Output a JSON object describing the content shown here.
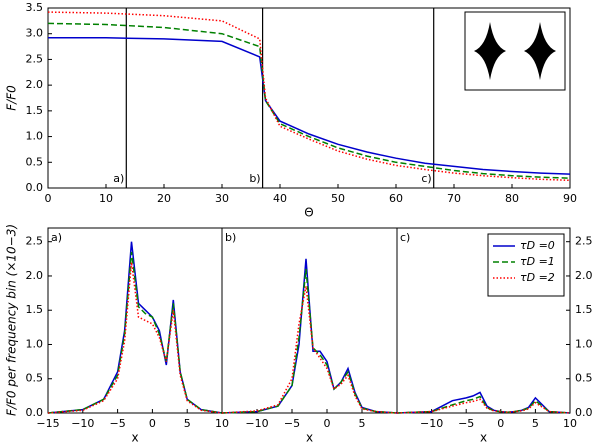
{
  "chart_data": [
    {
      "type": "line",
      "xlabel": "Θ",
      "ylabel": "F/F0",
      "xlim": [
        0,
        90
      ],
      "ylim": [
        0,
        3.5
      ],
      "xticks": [
        0,
        10,
        20,
        30,
        40,
        50,
        60,
        70,
        80,
        90
      ],
      "yticks": [
        {
          "value": 0,
          "label": "0.0"
        },
        0.5,
        {
          "value": 1,
          "label": "1.0"
        },
        1.5,
        {
          "value": 2,
          "label": "2.0"
        },
        2.5,
        {
          "value": 3,
          "label": "3.0"
        },
        3.5
      ],
      "markers": [
        {
          "x": 13.5,
          "label": "a)"
        },
        {
          "x": 37,
          "label": "b)"
        },
        {
          "x": 66.5,
          "label": "c)"
        }
      ],
      "x": [
        0,
        10,
        20,
        30,
        36.5,
        37.5,
        40,
        45,
        50,
        55,
        60,
        65,
        70,
        75,
        80,
        85,
        90
      ],
      "series": [
        {
          "color": "#0000cc",
          "style": "solid",
          "values": [
            2.92,
            2.92,
            2.9,
            2.85,
            2.55,
            1.7,
            1.3,
            1.05,
            0.85,
            0.7,
            0.58,
            0.48,
            0.42,
            0.36,
            0.32,
            0.29,
            0.27
          ]
        },
        {
          "color": "#008000",
          "style": "dashed",
          "values": [
            3.2,
            3.18,
            3.12,
            3.0,
            2.75,
            1.7,
            1.25,
            1.0,
            0.78,
            0.62,
            0.5,
            0.42,
            0.34,
            0.28,
            0.24,
            0.21,
            0.19
          ]
        },
        {
          "color": "#ff0000",
          "style": "dotted",
          "values": [
            3.42,
            3.4,
            3.35,
            3.25,
            2.9,
            1.75,
            1.2,
            0.95,
            0.72,
            0.56,
            0.44,
            0.36,
            0.29,
            0.24,
            0.2,
            0.17,
            0.15
          ]
        }
      ]
    },
    {
      "type": "line",
      "panel_label": "a)",
      "xlabel": "x",
      "ylabel": "F/F0 per frequency bin (×10−3)",
      "ytick_side": "left",
      "xlim": [
        -15,
        10
      ],
      "ylim": [
        0,
        2.7
      ],
      "xticks": [
        {
          "value": -15,
          "label": "−15"
        },
        {
          "value": -10,
          "label": "−10"
        },
        {
          "value": -5,
          "label": "−5"
        },
        0,
        5,
        10
      ],
      "yticks": [
        {
          "value": 0,
          "label": "0.0"
        },
        0.5,
        {
          "value": 1,
          "label": "1.0"
        },
        1.5,
        {
          "value": 2,
          "label": "2.0"
        },
        2.5
      ],
      "x": [
        -15,
        -10,
        -7,
        -5,
        -4,
        -3,
        -2,
        -1,
        0,
        1,
        2,
        3,
        4,
        5,
        7,
        10
      ],
      "series": [
        {
          "color": "#0000cc",
          "style": "solid",
          "values": [
            0,
            0.05,
            0.2,
            0.6,
            1.2,
            2.5,
            1.6,
            1.5,
            1.4,
            1.2,
            0.7,
            1.65,
            0.6,
            0.2,
            0.05,
            0
          ]
        },
        {
          "color": "#008000",
          "style": "dashed",
          "values": [
            0,
            0.05,
            0.2,
            0.55,
            1.15,
            2.35,
            1.55,
            1.45,
            1.4,
            1.15,
            0.75,
            1.6,
            0.6,
            0.2,
            0.05,
            0
          ]
        },
        {
          "color": "#ff0000",
          "style": "dotted",
          "values": [
            0,
            0.04,
            0.18,
            0.5,
            1.05,
            2.2,
            1.4,
            1.35,
            1.3,
            1.1,
            0.75,
            1.5,
            0.55,
            0.18,
            0.04,
            0
          ]
        }
      ]
    },
    {
      "type": "line",
      "panel_label": "b)",
      "xlabel": "x",
      "xlim": [
        -15,
        10
      ],
      "ylim": [
        0,
        2.7
      ],
      "xticks": [
        {
          "value": -10,
          "label": "−10"
        },
        {
          "value": -5,
          "label": "−5"
        },
        0,
        5
      ],
      "x": [
        -15,
        -10,
        -7,
        -5,
        -4,
        -3,
        -2,
        -1,
        0,
        1,
        2,
        3,
        4,
        5,
        7,
        10
      ],
      "series": [
        {
          "color": "#0000cc",
          "style": "solid",
          "values": [
            0,
            0.02,
            0.1,
            0.4,
            1.0,
            2.25,
            0.9,
            0.9,
            0.75,
            0.35,
            0.45,
            0.65,
            0.3,
            0.08,
            0.02,
            0
          ]
        },
        {
          "color": "#008000",
          "style": "dashed",
          "values": [
            0,
            0.02,
            0.1,
            0.4,
            1.1,
            2.1,
            0.95,
            0.85,
            0.7,
            0.35,
            0.45,
            0.6,
            0.28,
            0.07,
            0.02,
            0
          ]
        },
        {
          "color": "#ff0000",
          "style": "dotted",
          "values": [
            0,
            0.03,
            0.12,
            0.5,
            1.3,
            1.85,
            0.95,
            0.8,
            0.65,
            0.35,
            0.42,
            0.55,
            0.25,
            0.06,
            0.02,
            0
          ]
        }
      ]
    },
    {
      "type": "line",
      "panel_label": "c)",
      "xlabel": "x",
      "ytick_side": "right",
      "legend": "upper right",
      "xlim": [
        -15,
        10
      ],
      "ylim": [
        0,
        2.7
      ],
      "xticks": [
        {
          "value": -10,
          "label": "−10"
        },
        {
          "value": -5,
          "label": "−5"
        },
        0,
        5,
        10
      ],
      "yticks": [
        {
          "value": 0,
          "label": "0.0"
        },
        0.5,
        {
          "value": 1,
          "label": "1.0"
        },
        1.5,
        {
          "value": 2,
          "label": "2.0"
        },
        2.5
      ],
      "x": [
        -15,
        -10,
        -7,
        -5,
        -4,
        -3,
        -2,
        -1,
        0,
        1,
        2,
        3,
        4,
        5,
        7,
        10
      ],
      "series": [
        {
          "name": "τD =0",
          "color": "#0000cc",
          "style": "solid",
          "values": [
            0,
            0.02,
            0.18,
            0.22,
            0.25,
            0.3,
            0.1,
            0.04,
            0.02,
            0.01,
            0.02,
            0.04,
            0.08,
            0.22,
            0.02,
            0
          ]
        },
        {
          "name": "τD =1",
          "color": "#008000",
          "style": "dashed",
          "values": [
            0,
            0.02,
            0.12,
            0.18,
            0.2,
            0.24,
            0.08,
            0.03,
            0.02,
            0.01,
            0.02,
            0.04,
            0.07,
            0.18,
            0.02,
            0
          ]
        },
        {
          "name": "τD =2",
          "color": "#ff0000",
          "style": "dotted",
          "values": [
            0,
            0.02,
            0.1,
            0.15,
            0.17,
            0.2,
            0.07,
            0.03,
            0.02,
            0.01,
            0.02,
            0.03,
            0.06,
            0.15,
            0.02,
            0
          ]
        }
      ]
    }
  ]
}
